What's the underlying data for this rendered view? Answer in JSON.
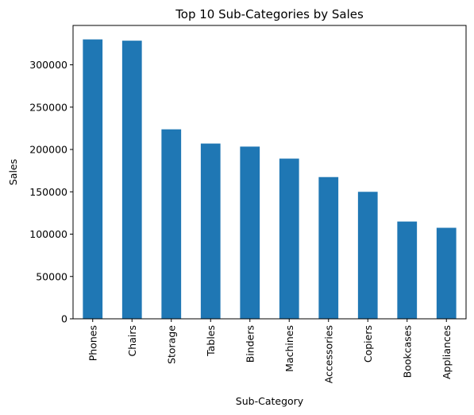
{
  "chart_data": {
    "type": "bar",
    "title": "Top 10 Sub-Categories by Sales",
    "xlabel": "Sub-Category",
    "ylabel": "Sales",
    "categories": [
      "Phones",
      "Chairs",
      "Storage",
      "Tables",
      "Binders",
      "Machines",
      "Accessories",
      "Copiers",
      "Bookcases",
      "Appliances"
    ],
    "series": [
      {
        "values": [
          330000,
          328500,
          223800,
          207000,
          203400,
          189200,
          167400,
          150000,
          114900,
          107500
        ]
      }
    ],
    "ylim": [
      0,
      346500
    ],
    "yticks": [
      0,
      50000,
      100000,
      150000,
      200000,
      250000,
      300000
    ],
    "ytick_labels": [
      "0",
      "50000",
      "100000",
      "150000",
      "200000",
      "250000",
      "300000"
    ],
    "bar_color": "#1f77b4",
    "grid": false,
    "legend": "none"
  }
}
